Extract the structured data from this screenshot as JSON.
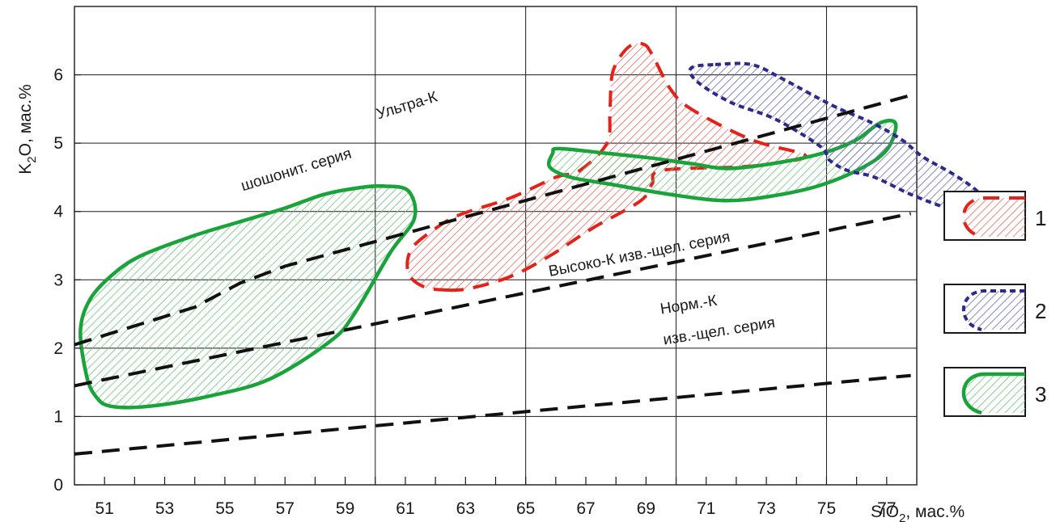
{
  "chart_data": {
    "type": "scatter",
    "title": "",
    "xlabel": "SiO",
    "xlabel_sub": "2",
    "xlabel_suffix": ", мас.%",
    "ylabel": "K",
    "ylabel_sub": "2",
    "ylabel_suffix": "O, мас.%",
    "xlim": [
      50,
      78
    ],
    "ylim": [
      0,
      7
    ],
    "xticks": [
      51,
      53,
      55,
      57,
      59,
      61,
      63,
      65,
      67,
      69,
      71,
      73,
      75,
      77
    ],
    "yticks": [
      0,
      1,
      2,
      3,
      4,
      5,
      6
    ],
    "grid": true,
    "grid_x": [
      50,
      60,
      65,
      70,
      75,
      78
    ],
    "grid_y": [
      1,
      2,
      3,
      4,
      5,
      6,
      7
    ],
    "boundary_lines": [
      {
        "x": [
          50,
          77.8
        ],
        "y": [
          0.45,
          1.6
        ]
      },
      {
        "x": [
          50,
          77.8
        ],
        "y": [
          1.45,
          3.97
        ]
      },
      {
        "x": [
          50,
          54,
          55.5,
          57,
          77.8
        ],
        "y": [
          2.05,
          2.6,
          2.95,
          3.2,
          5.7
        ]
      }
    ],
    "annotations": [
      {
        "text": "Ультра-К",
        "x": 60.1,
        "y": 5.35,
        "angle": -17
      },
      {
        "text": "шошонит. серия",
        "x": 55.6,
        "y": 4.3,
        "angle": -17
      },
      {
        "text": "Высоко-К изв.-щел. серия",
        "x": 65.8,
        "y": 3.05,
        "angle": -11
      },
      {
        "text": "Норм.-К",
        "x": 69.5,
        "y": 2.5,
        "angle": -9
      },
      {
        "text": "изв.-щел. серия",
        "x": 69.6,
        "y": 2.05,
        "angle": -9
      }
    ],
    "series": [
      {
        "name": "1",
        "color": "#e32219",
        "style": "dashed",
        "outline": [
          [
            62.4,
            2.85
          ],
          [
            63.2,
            2.88
          ],
          [
            64.5,
            3.05
          ],
          [
            65.8,
            3.35
          ],
          [
            67.2,
            3.75
          ],
          [
            68.8,
            4.15
          ],
          [
            69.2,
            4.4
          ],
          [
            69.5,
            4.6
          ],
          [
            72.0,
            4.65
          ],
          [
            73.2,
            4.7
          ],
          [
            74.3,
            4.82
          ],
          [
            72.5,
            5.05
          ],
          [
            70.5,
            5.5
          ],
          [
            69.8,
            5.8
          ],
          [
            69.2,
            6.3
          ],
          [
            68.9,
            6.45
          ],
          [
            68.4,
            6.4
          ],
          [
            67.9,
            6.05
          ],
          [
            67.8,
            5.5
          ],
          [
            67.7,
            5.0
          ],
          [
            66.8,
            4.6
          ],
          [
            66.0,
            4.5
          ],
          [
            64.5,
            4.2
          ],
          [
            62.8,
            3.95
          ],
          [
            62.0,
            3.75
          ],
          [
            61.2,
            3.45
          ],
          [
            61.1,
            3.1
          ],
          [
            61.6,
            2.9
          ]
        ]
      },
      {
        "name": "2",
        "color": "#2d2a8a",
        "style": "dotted",
        "outline": [
          [
            71.3,
            6.15
          ],
          [
            72.5,
            6.15
          ],
          [
            73.5,
            5.95
          ],
          [
            75.2,
            5.55
          ],
          [
            76.5,
            5.3
          ],
          [
            77.5,
            5.05
          ],
          [
            78.2,
            4.8
          ],
          [
            79.2,
            4.55
          ],
          [
            80.0,
            4.3
          ],
          [
            80.4,
            4.05
          ],
          [
            79.8,
            3.97
          ],
          [
            79.0,
            4.05
          ],
          [
            77.8,
            4.25
          ],
          [
            76.6,
            4.5
          ],
          [
            75.7,
            4.6
          ],
          [
            75.1,
            4.75
          ],
          [
            74.8,
            4.95
          ],
          [
            73.3,
            5.35
          ],
          [
            71.8,
            5.6
          ],
          [
            70.7,
            5.9
          ],
          [
            70.5,
            6.1
          ]
        ]
      },
      {
        "name": "3",
        "color": "#1aa33a",
        "style": "solid",
        "outline": [
          [
            51.2,
            1.15
          ],
          [
            52.5,
            1.15
          ],
          [
            54.5,
            1.3
          ],
          [
            56.5,
            1.55
          ],
          [
            58.5,
            2.1
          ],
          [
            59.3,
            2.5
          ],
          [
            60.5,
            3.4
          ],
          [
            61.3,
            3.9
          ],
          [
            61.1,
            4.3
          ],
          [
            60.3,
            4.37
          ],
          [
            59.5,
            4.35
          ],
          [
            58.3,
            4.25
          ],
          [
            57.0,
            4.05
          ],
          [
            55.5,
            3.85
          ],
          [
            54.0,
            3.65
          ],
          [
            52.2,
            3.35
          ],
          [
            51.2,
            3.05
          ],
          [
            50.5,
            2.7
          ],
          [
            50.2,
            2.25
          ],
          [
            50.4,
            1.6
          ],
          [
            50.7,
            1.3
          ]
        ],
        "outline_b": [
          [
            66.1,
            4.92
          ],
          [
            67.7,
            4.85
          ],
          [
            69.2,
            4.78
          ],
          [
            70.5,
            4.7
          ],
          [
            71.8,
            4.63
          ],
          [
            73.6,
            4.73
          ],
          [
            75.0,
            4.87
          ],
          [
            76.0,
            5.05
          ],
          [
            76.8,
            5.3
          ],
          [
            77.3,
            5.28
          ],
          [
            77.0,
            4.9
          ],
          [
            76.1,
            4.62
          ],
          [
            74.7,
            4.37
          ],
          [
            73.1,
            4.22
          ],
          [
            71.6,
            4.16
          ],
          [
            69.8,
            4.25
          ],
          [
            67.8,
            4.4
          ],
          [
            66.5,
            4.5
          ],
          [
            65.8,
            4.65
          ],
          [
            65.9,
            4.85
          ]
        ]
      }
    ],
    "legend": {
      "placement": "right",
      "entries": [
        "1",
        "2",
        "3"
      ]
    }
  }
}
